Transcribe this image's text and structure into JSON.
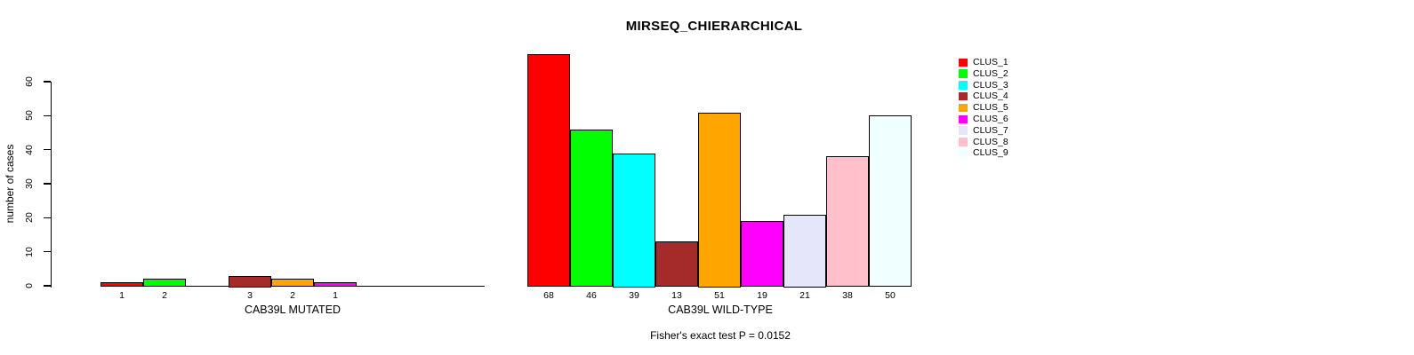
{
  "chart_data": {
    "type": "bar",
    "title": "MIRSEQ_CHIERARCHICAL",
    "ylabel": "number of cases",
    "ylim": [
      0,
      60
    ],
    "y_ticks": [
      0,
      10,
      20,
      30,
      40,
      50,
      60
    ],
    "grid": false,
    "legend_position": "right",
    "categories": [
      "CLUS_1",
      "CLUS_2",
      "CLUS_3",
      "CLUS_4",
      "CLUS_5",
      "CLUS_6",
      "CLUS_7",
      "CLUS_8",
      "CLUS_9"
    ],
    "colors": [
      "#FF0000",
      "#00FF00",
      "#00FFFF",
      "#A52A2A",
      "#FFA500",
      "#FF00FF",
      "#E6E6FA",
      "#FFC0CB",
      "#F0FFFF"
    ],
    "groups": [
      {
        "xlabel": "CAB39L MUTATED",
        "values": [
          1,
          2,
          0,
          3,
          2,
          1,
          0,
          0,
          0
        ]
      },
      {
        "xlabel": "CAB39L WILD-TYPE",
        "values": [
          68,
          46,
          39,
          13,
          51,
          19,
          21,
          38,
          50
        ]
      }
    ],
    "annotation": "Fisher's exact test P = 0.0152"
  }
}
